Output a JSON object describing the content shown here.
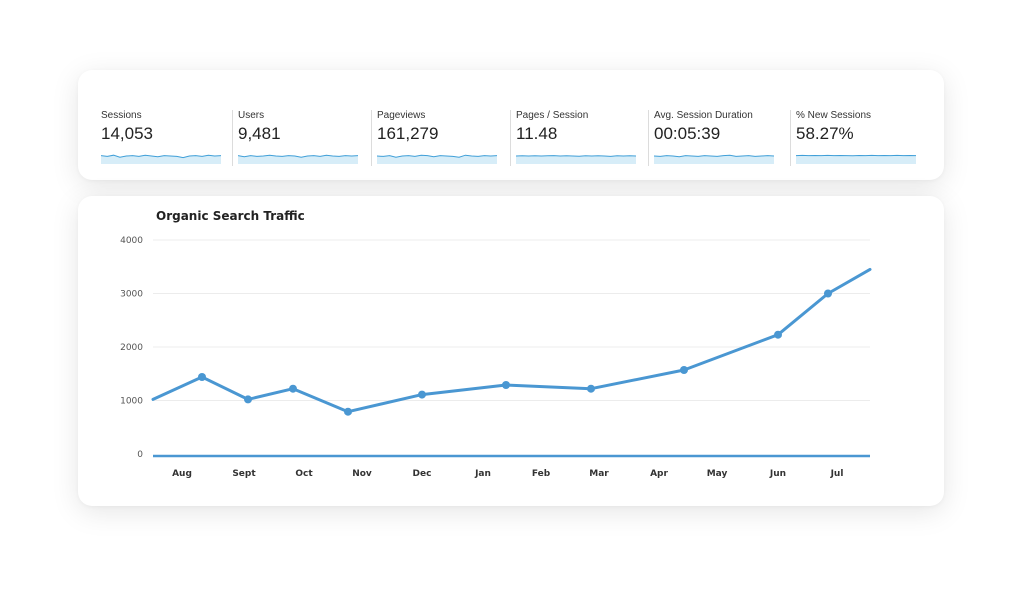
{
  "metrics": [
    {
      "label": "Sessions",
      "value": "14,053",
      "spark": [
        0.55,
        0.45,
        0.6,
        0.35,
        0.5,
        0.55,
        0.45,
        0.6,
        0.5,
        0.4,
        0.55,
        0.5,
        0.45,
        0.3,
        0.5,
        0.55,
        0.45,
        0.6,
        0.5,
        0.55
      ]
    },
    {
      "label": "Users",
      "value": "9,481",
      "spark": [
        0.55,
        0.4,
        0.55,
        0.45,
        0.5,
        0.6,
        0.5,
        0.45,
        0.55,
        0.5,
        0.35,
        0.5,
        0.55,
        0.45,
        0.6,
        0.5,
        0.45,
        0.55,
        0.5,
        0.55
      ]
    },
    {
      "label": "Pageviews",
      "value": "161,279",
      "spark": [
        0.5,
        0.45,
        0.55,
        0.35,
        0.5,
        0.55,
        0.45,
        0.6,
        0.55,
        0.4,
        0.55,
        0.5,
        0.45,
        0.35,
        0.6,
        0.5,
        0.45,
        0.55,
        0.5,
        0.55
      ]
    },
    {
      "label": "Pages / Session",
      "value": "11.48",
      "spark": [
        0.5,
        0.52,
        0.5,
        0.53,
        0.5,
        0.52,
        0.55,
        0.5,
        0.52,
        0.5,
        0.48,
        0.52,
        0.5,
        0.53,
        0.5,
        0.45,
        0.52,
        0.5,
        0.53,
        0.5
      ]
    },
    {
      "label": "Avg. Session Duration",
      "value": "00:05:39",
      "spark": [
        0.5,
        0.45,
        0.55,
        0.5,
        0.4,
        0.55,
        0.5,
        0.45,
        0.55,
        0.5,
        0.45,
        0.55,
        0.6,
        0.45,
        0.5,
        0.55,
        0.45,
        0.5,
        0.55,
        0.5
      ]
    },
    {
      "label": "% New Sessions",
      "value": "58.27%",
      "spark": [
        0.55,
        0.57,
        0.55,
        0.56,
        0.55,
        0.57,
        0.55,
        0.56,
        0.55,
        0.54,
        0.56,
        0.55,
        0.57,
        0.55,
        0.56,
        0.55,
        0.57,
        0.55,
        0.56,
        0.55
      ]
    }
  ],
  "colors": {
    "line": "#4a97d2",
    "spark_line": "#3f9fd8",
    "spark_fill": "#d7edf8",
    "grid": "#ececec",
    "axis_text": "#555555",
    "x_text": "#333333"
  },
  "chart_data": {
    "type": "line",
    "title": "Organic Search Traffic",
    "xlabel": "",
    "ylabel": "",
    "ylim": [
      0,
      4000
    ],
    "yticks": [
      0,
      1000,
      2000,
      3000,
      4000
    ],
    "x_labels": [
      "Aug",
      "Sept",
      "Oct",
      "Nov",
      "Dec",
      "Jan",
      "Feb",
      "Mar",
      "Apr",
      "May",
      "Jun",
      "Jul"
    ],
    "series": [
      {
        "points": [
          {
            "x": "Jul",
            "y": 1020
          },
          {
            "x": "Aug",
            "y": 1440
          },
          {
            "x": "Sept",
            "y": 1020
          },
          {
            "x": "Oct",
            "y": 1220
          },
          {
            "x": "Nov",
            "y": 790
          },
          {
            "x": "Dec",
            "y": 1110
          },
          {
            "x": "Jan",
            "y": 1290
          },
          {
            "x": "Mar",
            "y": 1220
          },
          {
            "x": "Apr",
            "y": 1570
          },
          {
            "x": "Jun",
            "y": 2230
          },
          {
            "x": "Jul",
            "y": 3000
          },
          {
            "x": "Aug",
            "y": 3450
          }
        ]
      }
    ],
    "grid": true,
    "legend": "none"
  }
}
